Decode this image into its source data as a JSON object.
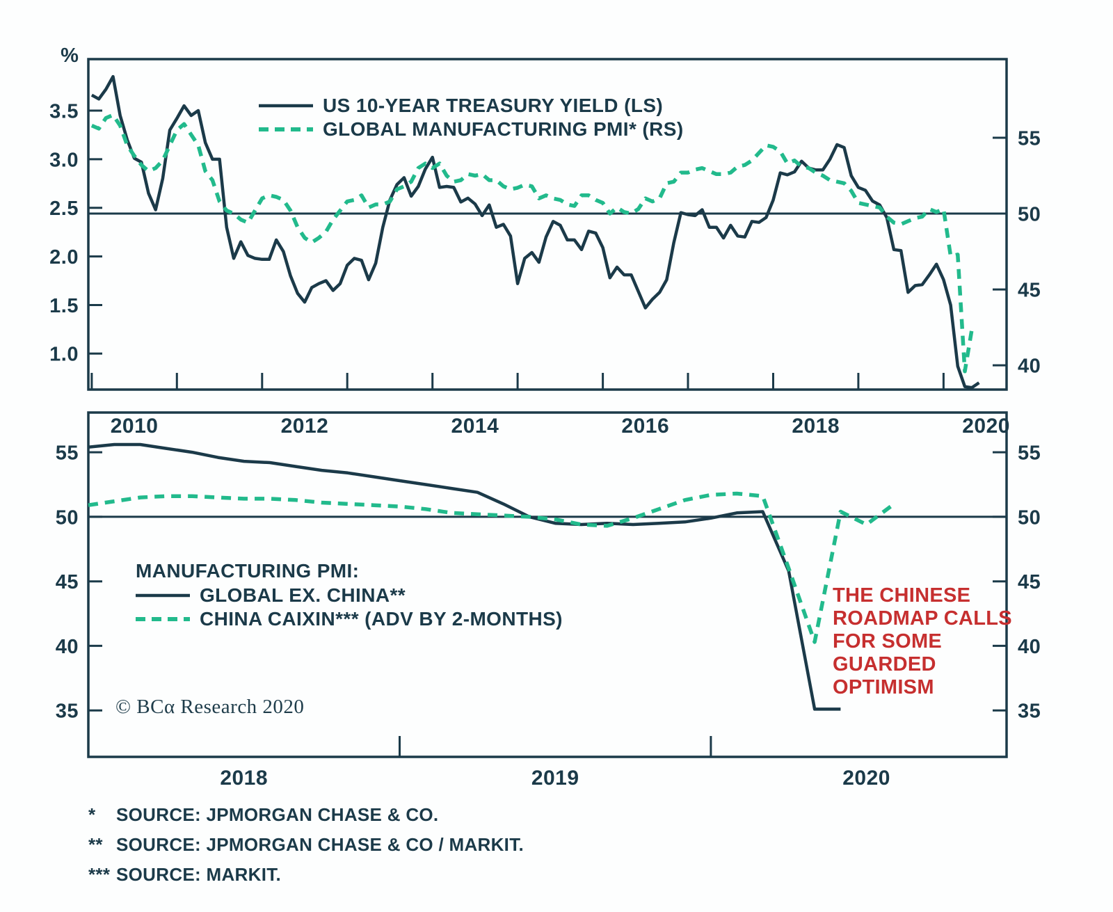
{
  "colors": {
    "dark": "#1b3a49",
    "green": "#22ba8c",
    "red": "#c62f2f",
    "background": "#ffffff"
  },
  "annotation": {
    "lines": [
      "THE CHINESE",
      "ROADMAP CALLS",
      "FOR SOME",
      "GUARDED",
      "OPTIMISM"
    ]
  },
  "copyright": "© BCα Research 2020",
  "footnotes": [
    {
      "mark": "*",
      "text": "SOURCE: JPMORGAN CHASE & CO."
    },
    {
      "mark": "**",
      "text": "SOURCE: JPMORGAN CHASE & CO / MARKIT."
    },
    {
      "mark": "***",
      "text": "SOURCE: MARKIT."
    }
  ],
  "chart_data": [
    {
      "type": "line",
      "panel": "top",
      "legend_position": "top-center-inside",
      "grid": false,
      "x_axis": {
        "range": [
          2009.96,
          2020.74
        ],
        "tick_years": [
          2010,
          2011,
          2012,
          2013,
          2014,
          2015,
          2016,
          2017,
          2018,
          2019,
          2020
        ],
        "labels": [
          "2010",
          "2012",
          "2014",
          "2016",
          "2018",
          "2020"
        ]
      },
      "left_axis": {
        "unit": "%",
        "range": [
          0.63,
          4.03
        ],
        "tick_values": [
          1.0,
          1.5,
          2.0,
          2.5,
          3.0,
          3.5
        ],
        "tick_labels": [
          "1.0",
          "1.5",
          "2.0",
          "2.5",
          "3.0",
          "3.5"
        ]
      },
      "right_axis": {
        "range": [
          38.4,
          60.18
        ],
        "tick_values": [
          40,
          45,
          50,
          55
        ],
        "tick_labels": [
          "40",
          "45",
          "50",
          "55"
        ]
      },
      "ref_line": {
        "axis": "right",
        "value": 50
      },
      "series": [
        {
          "name": "US 10-YEAR TREASURY YIELD (LS)",
          "axis": "left",
          "dashed": false,
          "color": "#1b3a49",
          "x_start": 2010.0,
          "x_step": 0.0833333,
          "values": [
            3.66,
            3.62,
            3.72,
            3.85,
            3.45,
            3.2,
            3.01,
            2.97,
            2.65,
            2.48,
            2.8,
            3.3,
            3.42,
            3.55,
            3.45,
            3.5,
            3.17,
            3.0,
            3.0,
            2.3,
            1.98,
            2.15,
            2.01,
            1.98,
            1.97,
            1.97,
            2.17,
            2.05,
            1.8,
            1.62,
            1.53,
            1.68,
            1.72,
            1.75,
            1.65,
            1.72,
            1.91,
            1.98,
            1.96,
            1.76,
            1.93,
            2.3,
            2.58,
            2.74,
            2.81,
            2.62,
            2.72,
            2.9,
            3.02,
            2.71,
            2.72,
            2.71,
            2.56,
            2.6,
            2.54,
            2.42,
            2.53,
            2.3,
            2.33,
            2.21,
            1.72,
            1.98,
            2.04,
            1.94,
            2.2,
            2.36,
            2.32,
            2.17,
            2.17,
            2.07,
            2.26,
            2.24,
            2.09,
            1.78,
            1.89,
            1.81,
            1.81,
            1.64,
            1.47,
            1.56,
            1.63,
            1.76,
            2.14,
            2.45,
            2.43,
            2.42,
            2.48,
            2.3,
            2.3,
            2.19,
            2.32,
            2.21,
            2.2,
            2.36,
            2.35,
            2.4,
            2.58,
            2.86,
            2.84,
            2.87,
            2.98,
            2.91,
            2.89,
            2.89,
            3.0,
            3.15,
            3.12,
            2.83,
            2.71,
            2.68,
            2.57,
            2.53,
            2.4,
            2.07,
            2.06,
            1.63,
            1.7,
            1.71,
            1.81,
            1.92,
            1.76,
            1.5,
            0.87,
            0.66,
            0.65,
            0.7
          ]
        },
        {
          "name": "GLOBAL MANUFACTURING PMI* (RS)",
          "axis": "right",
          "dashed": true,
          "color": "#22ba8c",
          "x_start": 2010.0,
          "x_step": 0.0833333,
          "values": [
            55.8,
            55.6,
            56.3,
            56.5,
            55.8,
            54.5,
            53.8,
            53.2,
            52.8,
            53.0,
            53.5,
            54.5,
            55.5,
            55.9,
            55.2,
            54.5,
            52.8,
            52.2,
            50.8,
            50.2,
            50.0,
            49.6,
            49.4,
            50.2,
            51.0,
            51.2,
            51.1,
            50.9,
            50.2,
            49.1,
            48.4,
            48.1,
            48.4,
            48.8,
            49.6,
            50.2,
            50.8,
            50.9,
            51.2,
            50.4,
            50.6,
            50.6,
            50.8,
            51.6,
            51.8,
            52.1,
            53.0,
            53.3,
            53.0,
            53.3,
            52.5,
            52.1,
            52.2,
            52.6,
            52.5,
            52.6,
            52.2,
            52.2,
            51.8,
            51.6,
            51.7,
            51.9,
            51.8,
            51.0,
            51.2,
            51.0,
            50.9,
            50.6,
            50.5,
            51.2,
            51.2,
            50.9,
            50.7,
            50.0,
            50.4,
            50.1,
            50.0,
            50.3,
            51.0,
            50.8,
            51.0,
            52.0,
            52.1,
            52.7,
            52.7,
            52.9,
            53.0,
            52.8,
            52.6,
            52.6,
            52.7,
            53.1,
            53.2,
            53.5,
            54.0,
            54.5,
            54.4,
            54.1,
            53.3,
            53.5,
            53.1,
            53.0,
            52.7,
            52.5,
            52.2,
            52.1,
            52.0,
            51.5,
            50.7,
            50.6,
            50.5,
            50.4,
            49.8,
            49.4,
            49.3,
            49.5,
            49.7,
            49.8,
            50.3,
            50.1,
            50.3,
            47.2,
            47.3,
            39.6,
            42.4
          ]
        }
      ]
    },
    {
      "type": "line",
      "panel": "bottom",
      "legend_title": "MANUFACTURING PMI:",
      "grid": false,
      "x_axis": {
        "range": [
          2018.0,
          2020.95
        ],
        "tick_years": [
          2019,
          2020
        ],
        "labels": [
          "2018",
          "2019",
          "2020"
        ]
      },
      "left_axis": {
        "unit": "",
        "range": [
          31.4,
          58.08
        ],
        "tick_values": [
          35,
          40,
          45,
          50,
          55
        ],
        "tick_labels": [
          "35",
          "40",
          "45",
          "50",
          "55"
        ]
      },
      "right_axis": {
        "range": [
          31.4,
          58.08
        ],
        "tick_values": [
          35,
          40,
          45,
          50,
          55
        ],
        "tick_labels": [
          "35",
          "40",
          "45",
          "50",
          "55"
        ]
      },
      "ref_line": {
        "axis": "left",
        "value": 50
      },
      "series": [
        {
          "name": "GLOBAL EX. CHINA**",
          "axis": "left",
          "dashed": false,
          "color": "#1b3a49",
          "x_start": 2018.0,
          "x_step": 0.0833333,
          "values": [
            55.4,
            55.6,
            55.6,
            55.3,
            55.0,
            54.6,
            54.3,
            54.2,
            53.9,
            53.6,
            53.4,
            53.1,
            52.8,
            52.5,
            52.2,
            51.9,
            51.0,
            50.0,
            49.5,
            49.4,
            49.5,
            49.4,
            49.5,
            49.6,
            49.9,
            50.3,
            50.4,
            45.8,
            35.1,
            35.1
          ]
        },
        {
          "name": "CHINA CAIXIN*** (ADV BY 2-MONTHS)",
          "axis": "left",
          "dashed": true,
          "color": "#22ba8c",
          "x_start": 2018.0,
          "x_step": 0.0833333,
          "values": [
            50.9,
            51.2,
            51.5,
            51.6,
            51.6,
            51.5,
            51.4,
            51.4,
            51.3,
            51.1,
            51.0,
            50.9,
            50.8,
            50.6,
            50.3,
            50.2,
            50.1,
            50.0,
            49.8,
            49.4,
            49.3,
            49.9,
            50.6,
            51.3,
            51.7,
            51.8,
            51.6,
            46.0,
            40.3,
            50.4,
            49.4,
            50.9
          ]
        }
      ]
    }
  ]
}
